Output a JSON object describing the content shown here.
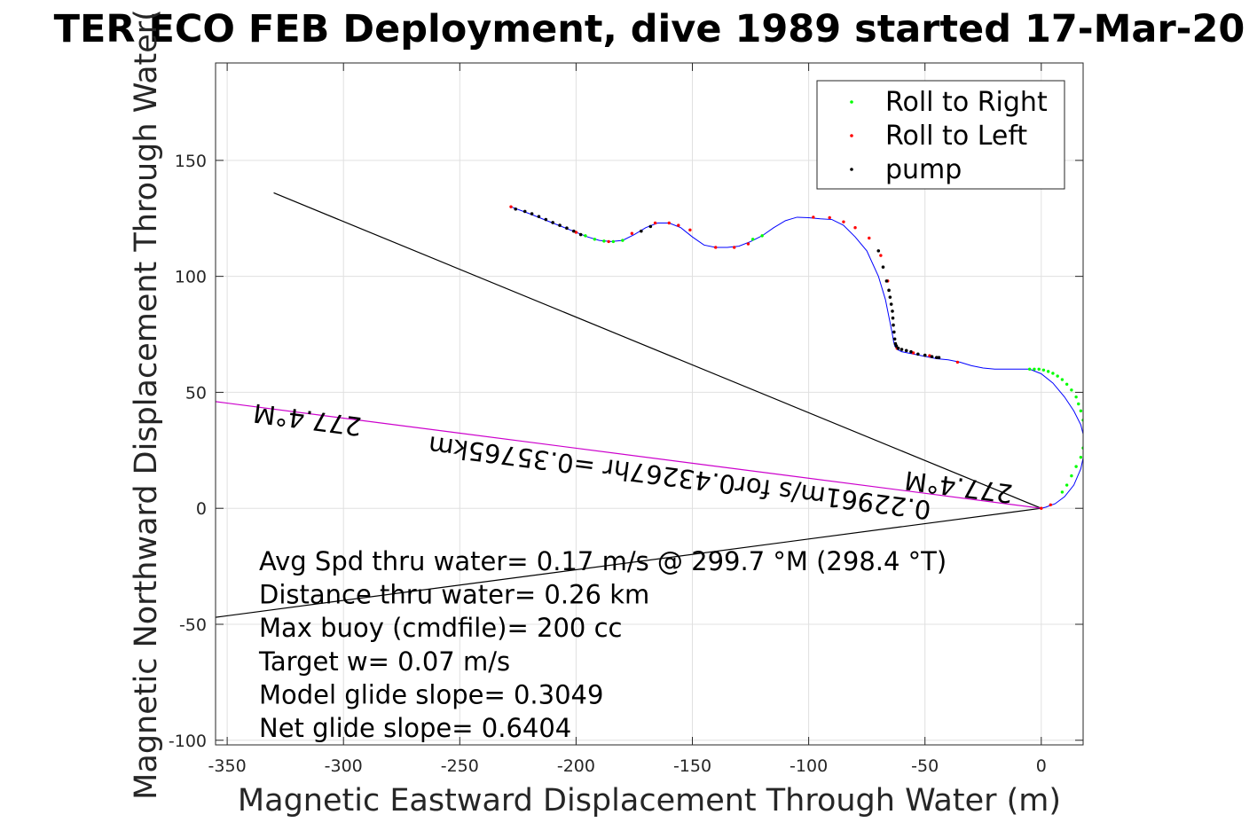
{
  "chart_data": {
    "type": "scatter",
    "title": "TER ECO FEB Deployment, dive 1989 started 17-Mar-20",
    "xlabel": "Magnetic Eastward Displacement Through Water (m)",
    "ylabel": "Magnetic Northward Displacement Through Water(",
    "xlim": [
      -355,
      18
    ],
    "ylim": [
      -102,
      192
    ],
    "xticks": [
      -350,
      -300,
      -250,
      -200,
      -150,
      -100,
      -50,
      0
    ],
    "yticks": [
      -100,
      -50,
      0,
      50,
      100,
      150
    ],
    "xtick_labels": [
      "-350",
      "-300",
      "-250",
      "-200",
      "-150",
      "-100",
      "-50",
      "0"
    ],
    "ytick_labels": [
      "-100",
      "-50",
      "0",
      "50",
      "100",
      "150"
    ],
    "grid": true,
    "legend_position": "top-right",
    "legend": [
      {
        "label": "Roll to Right",
        "color": "#00ff00"
      },
      {
        "label": "Roll to Left",
        "color": "#ff0000"
      },
      {
        "label": "pump",
        "color": "#000000"
      }
    ],
    "track": {
      "name": "track",
      "color": "#0000ff",
      "x": [
        -228,
        -220,
        -210,
        -200,
        -195,
        -190,
        -185,
        -180,
        -175,
        -170,
        -165,
        -160,
        -155,
        -150,
        -145,
        -140,
        -135,
        -130,
        -125,
        -120,
        -115,
        -110,
        -105,
        -100,
        -95,
        -90,
        -85,
        -80,
        -75,
        -70,
        -67,
        -65,
        -64,
        -63.5,
        -63,
        -62,
        -60,
        -55,
        -50,
        -45,
        -40,
        -35,
        -30,
        -25,
        -20,
        -15,
        -10,
        -5,
        0,
        5,
        10,
        14,
        17,
        18.5,
        18.5,
        17,
        14,
        10,
        6,
        2,
        0
      ],
      "y": [
        130,
        127,
        123,
        119,
        117,
        115.5,
        115,
        115.5,
        118,
        121,
        123,
        123,
        121,
        117,
        113.5,
        112.5,
        112.5,
        113,
        115,
        117.5,
        121,
        124,
        125.5,
        125.3,
        124.8,
        124.5,
        122,
        117,
        111,
        100,
        90,
        80,
        75,
        72,
        70,
        68.5,
        67.5,
        66.5,
        65.5,
        64.5,
        64,
        63,
        61.5,
        60.5,
        60,
        60,
        60,
        60,
        58,
        54,
        48,
        42,
        36,
        30,
        24,
        17,
        10,
        5,
        2,
        0.5,
        0
      ]
    },
    "roll_right_points": {
      "x": [
        -196,
        -192,
        -188,
        -184,
        -180,
        -124,
        -120,
        -5,
        -3,
        -1,
        1,
        3,
        5,
        7,
        9,
        11,
        13,
        15,
        16,
        17,
        18,
        18.5,
        18.5,
        18,
        17,
        15,
        13,
        11,
        9
      ],
      "y": [
        117.5,
        116,
        115.2,
        115,
        115.5,
        116,
        117.5,
        60,
        60,
        60,
        59.6,
        59,
        58.2,
        57,
        55.5,
        53.5,
        51,
        48,
        45,
        42,
        38,
        34,
        30,
        26,
        22,
        18,
        14,
        10,
        7
      ]
    },
    "roll_left_points": {
      "x": [
        -228,
        -200,
        -186,
        -176,
        -166,
        -160,
        -156,
        -151,
        -140,
        -132,
        -126,
        -98,
        -91,
        -85,
        -80,
        -74,
        -69,
        -66,
        -62,
        -55,
        -48,
        -36,
        0,
        4
      ],
      "y": [
        130,
        119,
        115,
        118.5,
        123,
        123,
        122,
        120,
        112.5,
        112.5,
        114,
        125.5,
        125.3,
        123.5,
        121,
        116.5,
        109,
        98,
        69,
        67,
        65.8,
        63,
        0,
        1.5
      ]
    },
    "pump_points": {
      "x": [
        -226,
        -222,
        -219,
        -216,
        -213,
        -210,
        -207,
        -204,
        -201,
        -198,
        -172,
        -168,
        -70,
        -68,
        -66.5,
        -65.5,
        -65,
        -64.5,
        -64,
        -63.8,
        -63.6,
        -63.3,
        -63,
        -62.7,
        -62.3,
        -61.5,
        -60,
        -58,
        -56,
        -53,
        -50,
        -47,
        -45,
        -44
      ],
      "y": [
        129,
        128,
        127,
        125.8,
        124.5,
        123.2,
        122,
        120.8,
        119.5,
        118,
        119.5,
        121.5,
        111,
        104,
        98,
        94,
        91,
        88,
        85,
        82,
        79,
        76,
        73,
        71,
        70,
        69,
        68.5,
        68,
        67.5,
        66.5,
        66,
        65.4,
        65,
        65
      ]
    },
    "lines": [
      {
        "name": "black-line-upper",
        "color": "#000000",
        "x": [
          -330,
          0
        ],
        "y": [
          136,
          0
        ]
      },
      {
        "name": "black-line-lower",
        "color": "#000000",
        "x": [
          -355,
          0
        ],
        "y": [
          -47,
          0
        ]
      },
      {
        "name": "heading-line",
        "color": "#cc00cc",
        "x": [
          -355,
          0
        ],
        "y": [
          46,
          0
        ]
      }
    ],
    "rotated_labels": [
      {
        "text": "277.4°M",
        "x": -315,
        "y": 42,
        "angle_deg": 187.4
      },
      {
        "text": "277.4°M",
        "x": -35,
        "y": 13,
        "angle_deg": 187.4
      },
      {
        "text": "0.22961m/s for0.43267hr =0.35765km",
        "x": -155,
        "y": 17,
        "angle_deg": 187.4
      }
    ],
    "annotations": [
      "Avg Spd thru water=  0.17 m/s @ 299.7 °M (298.4 °T)",
      "Distance thru water=  0.26 km",
      "Max buoy (cmdfile)= 200 cc",
      "Target w= 0.07 m/s",
      "Model glide slope= 0.3049",
      "Net glide slope= 0.6404"
    ]
  }
}
